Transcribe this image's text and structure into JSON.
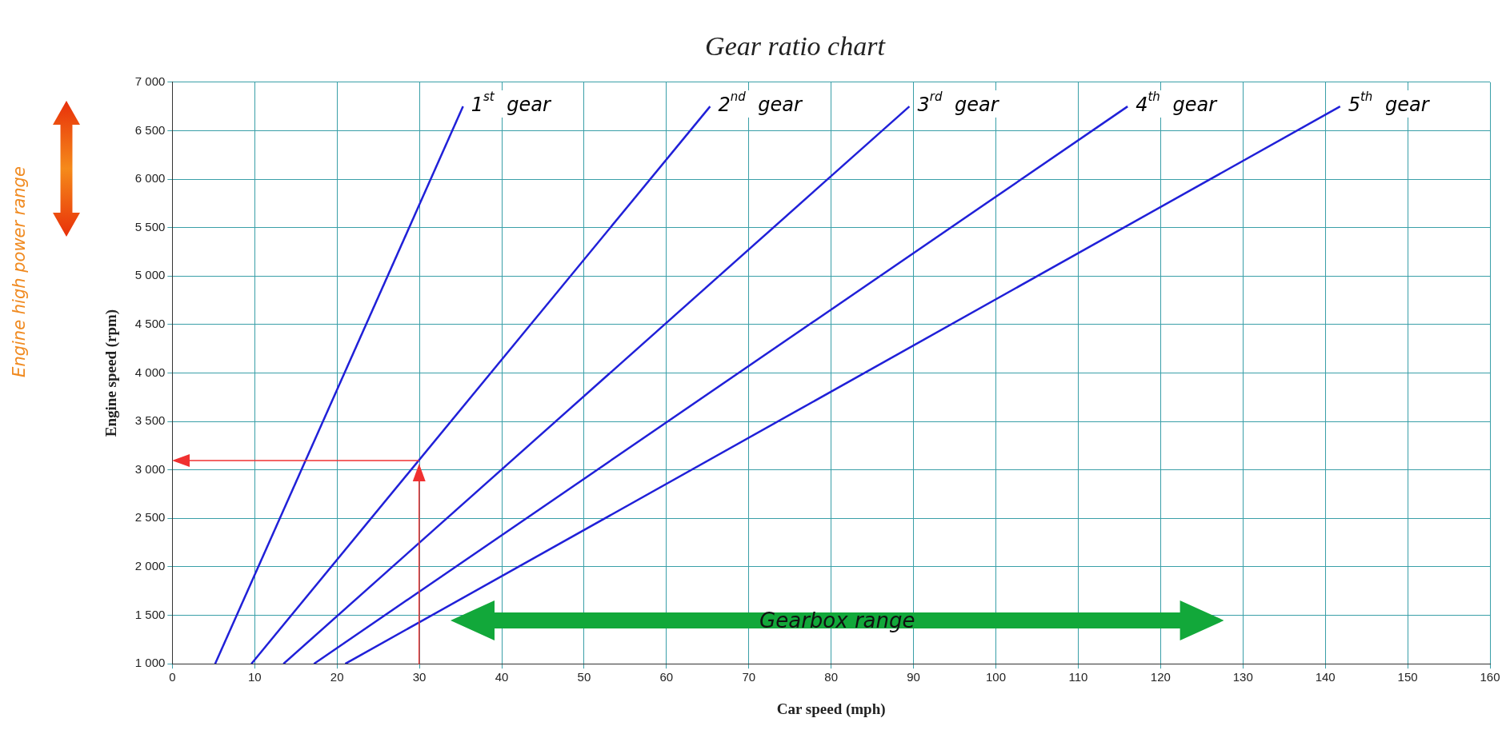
{
  "chart_data": {
    "type": "line",
    "title": "Gear ratio chart",
    "xlabel": "Car speed (mph)",
    "ylabel": "Engine speed (rpm)",
    "xlim": [
      0,
      160
    ],
    "xticks": [
      0,
      10,
      20,
      30,
      40,
      50,
      60,
      70,
      80,
      90,
      100,
      110,
      120,
      130,
      140,
      150,
      160
    ],
    "ylim": [
      1000,
      7000
    ],
    "yticks": [
      {
        "value": 1000,
        "label": "1 000"
      },
      {
        "value": 1500,
        "label": "1 500"
      },
      {
        "value": 2000,
        "label": "2 000"
      },
      {
        "value": 2500,
        "label": "2 500"
      },
      {
        "value": 3000,
        "label": "3 000"
      },
      {
        "value": 3500,
        "label": "3 500"
      },
      {
        "value": 4000,
        "label": "4 000"
      },
      {
        "value": 4500,
        "label": "4 500"
      },
      {
        "value": 5000,
        "label": "5 000"
      },
      {
        "value": 5500,
        "label": "5 500"
      },
      {
        "value": 6000,
        "label": "6 000"
      },
      {
        "value": 6500,
        "label": "6 500"
      },
      {
        "value": 7000,
        "label": "7 000"
      }
    ],
    "grid": true,
    "legend": false,
    "marker": "none",
    "series": [
      {
        "name": "1$^{st}$ gear",
        "color": "#2020d8",
        "x": [
          5.2,
          35.3
        ],
        "values": [
          1000,
          6750
        ]
      },
      {
        "name": "2$^{nd}$ gear",
        "color": "#2020d8",
        "x": [
          9.6,
          65.3
        ],
        "values": [
          1000,
          6750
        ]
      },
      {
        "name": "3$^{rd}$ gear",
        "color": "#2020d8",
        "x": [
          13.5,
          89.5
        ],
        "values": [
          1000,
          6750
        ]
      },
      {
        "name": "4$^{th}$ gear",
        "color": "#2020d8",
        "x": [
          17.2,
          116
        ],
        "values": [
          1000,
          6750
        ]
      },
      {
        "name": "5$^{th}$ gear",
        "color": "#2020d8",
        "x": [
          21,
          141.8
        ],
        "values": [
          1000,
          6750
        ]
      }
    ],
    "annotations": [
      "Engine high power range",
      "Gearbox range"
    ]
  }
}
